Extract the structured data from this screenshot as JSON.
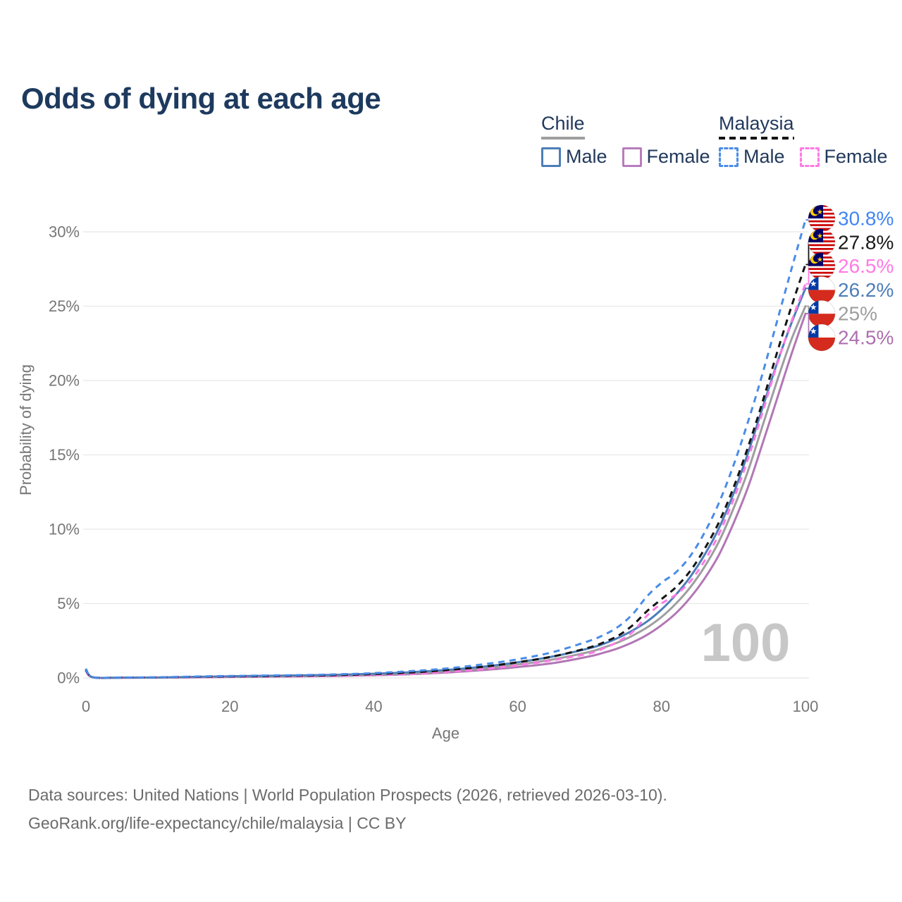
{
  "title": "Odds of dying at each age",
  "legend": {
    "groups": [
      {
        "id": "chile",
        "label": "Chile",
        "line_style": "solid",
        "line_color": "#9e9e9e",
        "items": [
          {
            "id": "chile-male",
            "label": "Male",
            "color": "#4d7eb8",
            "dash": false
          },
          {
            "id": "chile-female",
            "label": "Female",
            "color": "#b87cbd",
            "dash": false
          }
        ]
      },
      {
        "id": "malaysia",
        "label": "Malaysia",
        "line_style": "dashed",
        "line_color": "#141414",
        "items": [
          {
            "id": "malaysia-male",
            "label": "Male",
            "color": "#4a8ce8",
            "dash": true
          },
          {
            "id": "malaysia-female",
            "label": "Female",
            "color": "#ff7ae4",
            "dash": true
          }
        ]
      }
    ]
  },
  "chart_data": {
    "type": "line",
    "title": "Odds of dying at each age",
    "xlabel": "Age",
    "ylabel": "Probability of dying",
    "xlim": [
      0,
      100
    ],
    "ylim_percent": [
      0,
      30
    ],
    "xticks": [
      0,
      20,
      40,
      60,
      80,
      100
    ],
    "yticks": {
      "values": [
        0,
        5,
        10,
        15,
        20,
        25,
        30
      ],
      "labels": [
        "0%",
        "5%",
        "10%",
        "15%",
        "20%",
        "25%",
        "30%"
      ]
    },
    "grid": "horizontal",
    "legend_position": "top-right",
    "watermark": "100",
    "ages": [
      0,
      1,
      5,
      10,
      15,
      20,
      25,
      30,
      35,
      40,
      45,
      50,
      55,
      60,
      65,
      70,
      72,
      74,
      76,
      78,
      80,
      82,
      84,
      86,
      88,
      90,
      92,
      94,
      96,
      98,
      100
    ],
    "series": [
      {
        "id": "chile-female",
        "name": "Chile Female",
        "country": "Chile",
        "sex": "Female",
        "flag": "chile",
        "color": "#b277b5",
        "dash": false,
        "end_label": "24.5%",
        "end_value": 24.5,
        "label_color": "#ad6fb0",
        "values": [
          0.45,
          0.03,
          0.015,
          0.02,
          0.04,
          0.065,
          0.085,
          0.11,
          0.13,
          0.18,
          0.25,
          0.36,
          0.52,
          0.73,
          1.0,
          1.45,
          1.7,
          2.0,
          2.4,
          2.9,
          3.55,
          4.35,
          5.4,
          6.7,
          8.3,
          10.4,
          12.8,
          15.7,
          18.7,
          21.7,
          24.5
        ]
      },
      {
        "id": "chile-all",
        "name": "Chile",
        "country": "Chile",
        "sex": "Both",
        "flag": "chile",
        "color": "#9e9e9e",
        "dash": false,
        "end_label": "25%",
        "end_value": 25.0,
        "label_color": "#9e9e9e",
        "values": [
          0.5,
          0.035,
          0.018,
          0.025,
          0.055,
          0.09,
          0.11,
          0.14,
          0.17,
          0.23,
          0.31,
          0.45,
          0.64,
          0.9,
          1.25,
          1.75,
          2.05,
          2.4,
          2.85,
          3.4,
          4.1,
          5.0,
          6.1,
          7.5,
          9.2,
          11.4,
          13.9,
          16.9,
          19.9,
          22.7,
          25.0
        ]
      },
      {
        "id": "chile-male",
        "name": "Chile Male",
        "country": "Chile",
        "sex": "Male",
        "flag": "chile",
        "color": "#4d7eb8",
        "dash": false,
        "end_label": "26.2%",
        "end_value": 26.2,
        "label_color": "#4d7eb8",
        "values": [
          0.55,
          0.04,
          0.02,
          0.03,
          0.07,
          0.11,
          0.14,
          0.17,
          0.21,
          0.28,
          0.38,
          0.53,
          0.75,
          1.05,
          1.45,
          2.0,
          2.3,
          2.7,
          3.2,
          3.8,
          4.6,
          5.6,
          6.8,
          8.3,
          10.1,
          12.4,
          15.1,
          18.1,
          21.1,
          23.8,
          26.2
        ]
      },
      {
        "id": "malaysia-female",
        "name": "Malaysia Female",
        "country": "Malaysia",
        "sex": "Female",
        "flag": "malaysia",
        "color": "#ff7ae4",
        "dash": true,
        "end_label": "26.5%",
        "end_value": 26.5,
        "label_color": "#ff7ae4",
        "values": [
          0.5,
          0.04,
          0.02,
          0.03,
          0.05,
          0.07,
          0.09,
          0.11,
          0.14,
          0.2,
          0.28,
          0.4,
          0.58,
          0.85,
          1.2,
          1.65,
          2.0,
          2.45,
          3.1,
          4.2,
          5.0,
          5.6,
          6.5,
          7.9,
          9.7,
          12.0,
          14.7,
          17.8,
          21.0,
          23.9,
          26.5
        ]
      },
      {
        "id": "malaysia-all",
        "name": "Malaysia",
        "country": "Malaysia",
        "sex": "Both",
        "flag": "malaysia",
        "color": "#141414",
        "dash": true,
        "end_label": "27.8%",
        "end_value": 27.8,
        "label_color": "#1a1a1a",
        "values": [
          0.55,
          0.045,
          0.025,
          0.035,
          0.07,
          0.1,
          0.12,
          0.15,
          0.19,
          0.26,
          0.36,
          0.52,
          0.74,
          1.05,
          1.45,
          2.05,
          2.4,
          2.85,
          3.55,
          4.5,
          5.3,
          6.1,
          7.2,
          8.7,
          10.5,
          12.8,
          15.5,
          18.5,
          21.8,
          24.9,
          27.8
        ]
      },
      {
        "id": "malaysia-male",
        "name": "Malaysia Male",
        "country": "Malaysia",
        "sex": "Male",
        "flag": "malaysia",
        "color": "#4a8ce8",
        "dash": true,
        "end_label": "30.8%",
        "end_value": 30.8,
        "label_color": "#4285f4",
        "values": [
          0.6,
          0.05,
          0.03,
          0.04,
          0.09,
          0.13,
          0.16,
          0.19,
          0.24,
          0.32,
          0.45,
          0.63,
          0.9,
          1.25,
          1.75,
          2.5,
          2.9,
          3.45,
          4.3,
          5.5,
          6.4,
          7.1,
          8.2,
          9.8,
          11.8,
          14.3,
          17.2,
          20.4,
          23.9,
          27.4,
          30.8
        ]
      }
    ],
    "colors": {
      "grid": "#e8e8e8",
      "axis_text": "#767676",
      "watermark": "#c7c7c7",
      "flag_chile_blue": "#0039a6",
      "flag_chile_red": "#d52b1e",
      "flag_malaysia_blue": "#010066",
      "flag_malaysia_red": "#cc0001",
      "flag_malaysia_yellow": "#ffcc00"
    }
  },
  "footer": {
    "line1": "Data sources: United Nations | World Population Prospects (2026, retrieved 2026-03-10).",
    "line2": "GeoRank.org/life-expectancy/chile/malaysia | CC BY"
  }
}
